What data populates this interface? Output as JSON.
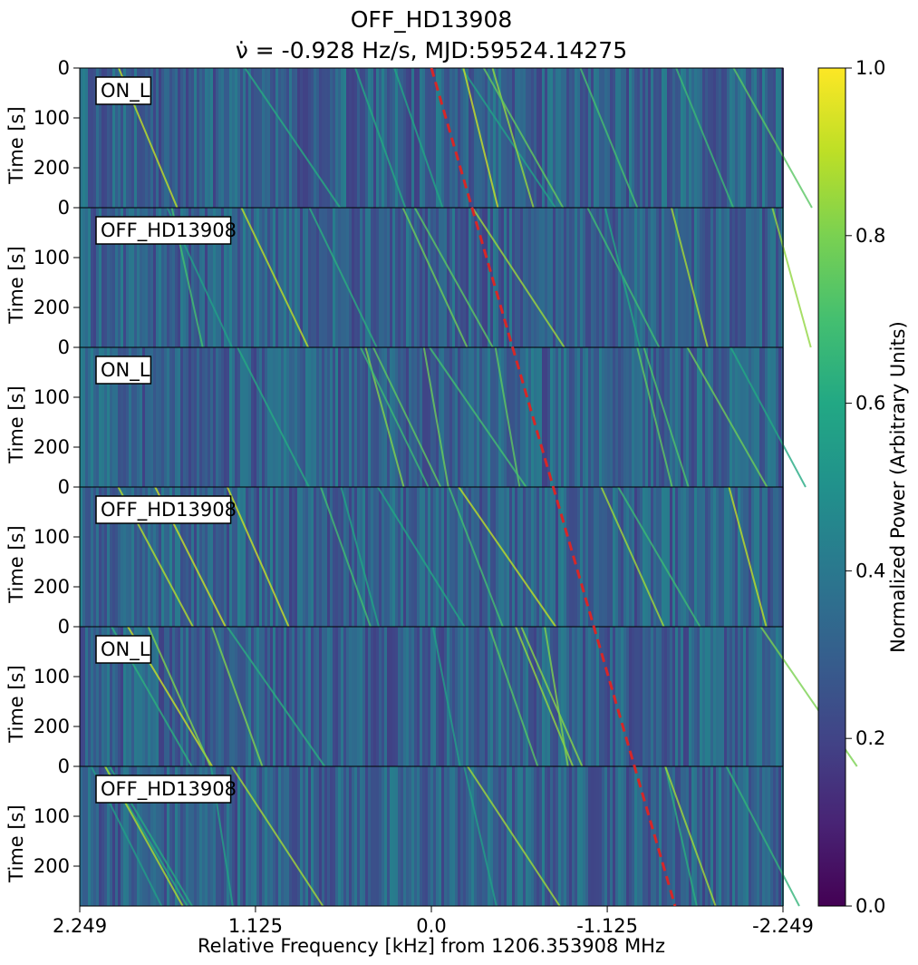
{
  "chart_data": {
    "type": "heatmap",
    "title": "OFF_HD13908",
    "subtitle": "ν̇ = -0.928 Hz/s, MJD:59524.14275",
    "xlabel": "Relative Frequency [kHz] from 1206.353908 MHz",
    "ylabel": "Time [s]",
    "colorbar_label": "Normalized Power (Arbitrary Units)",
    "colormap": "viridis",
    "colorbar_range": [
      0.0,
      1.0
    ],
    "colorbar_ticks": [
      "0.0",
      "0.2",
      "0.4",
      "0.6",
      "0.8",
      "1.0"
    ],
    "x_range_khz": [
      2.249,
      -2.249
    ],
    "x_ticks": [
      "2.249",
      "1.125",
      "0.0",
      "-1.125",
      "-2.249"
    ],
    "y_range_s": [
      0,
      280
    ],
    "y_ticks": [
      "0",
      "100",
      "200"
    ],
    "last_panel_y_ticks": [
      "0",
      "100",
      "200"
    ],
    "panels": [
      {
        "label": "ON_L"
      },
      {
        "label": "OFF_HD13908"
      },
      {
        "label": "ON_L"
      },
      {
        "label": "OFF_HD13908"
      },
      {
        "label": "ON_L"
      },
      {
        "label": "OFF_HD13908"
      }
    ],
    "drift_line": {
      "color": "#d62728",
      "style": "dashed",
      "start": {
        "time_s": 0,
        "freq_khz": 0.0
      },
      "drift_rate_hz_per_s": -0.928
    },
    "grid": false
  }
}
